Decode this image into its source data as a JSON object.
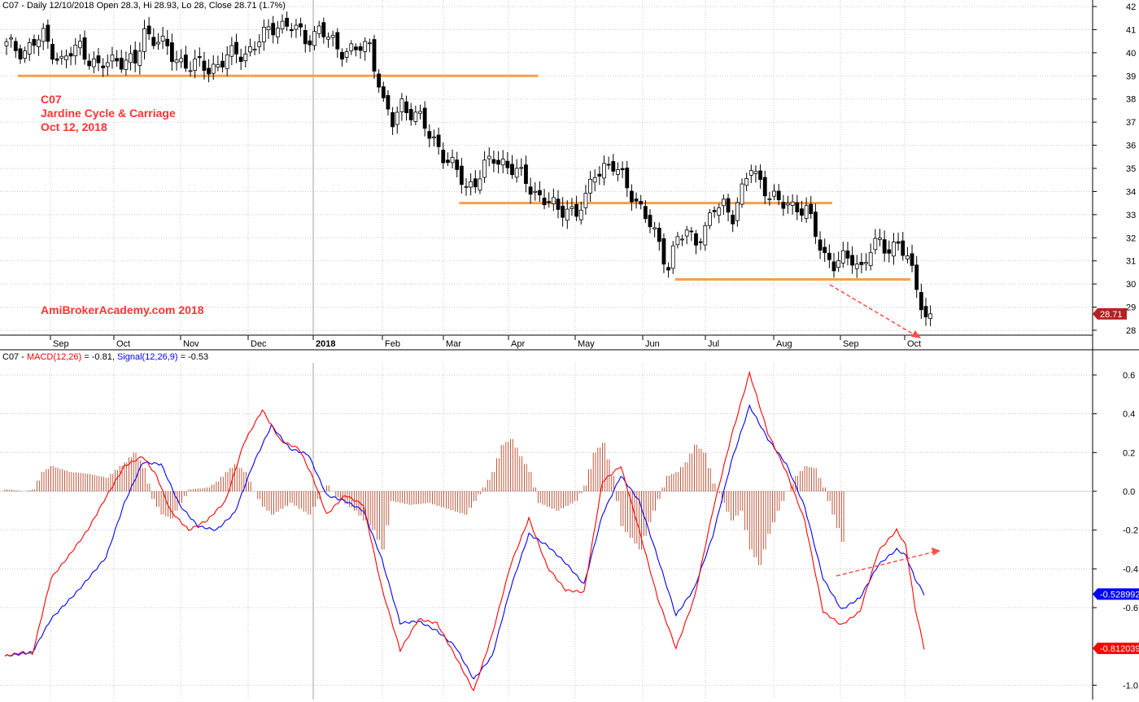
{
  "price_panel": {
    "header": "C07 - Daily 12/10/2018 Open 28.3, Hi 28.93, Lo 28, Close 28.71 (1.7%)",
    "annotation_lines": [
      "C07",
      "Jardine Cycle & Carriage",
      "Oct 12, 2018"
    ],
    "watermark": "AmiBrokerAcademy.com  2018",
    "last_price_badge": "28.71"
  },
  "macd_panel": {
    "header_prefix": "C07 - ",
    "macd_label": "MACD(12,26)",
    "macd_value": " = -0.81, ",
    "signal_label": "Signal(12,26,9)",
    "signal_value": " = -0.53",
    "signal_badge": "-0.528992",
    "macd_badge": "-0.812039"
  },
  "colors": {
    "up_candle": "#ffffff",
    "down_candle": "#000000",
    "support_line": "#f5a04a",
    "macd_line": "#ff0000",
    "signal_line": "#0000ff",
    "histogram": "#b5472a",
    "arrow": "#ff4d4d",
    "grid": "#c8c8c8",
    "badge_price": "#b22222",
    "badge_signal": "#0000ff",
    "badge_macd": "#ff0000"
  },
  "chart_data": [
    {
      "type": "candlestick",
      "ylim": [
        28,
        42
      ],
      "ticks": [
        28,
        29,
        30,
        31,
        32,
        33,
        34,
        35,
        36,
        37,
        38,
        39,
        40,
        41,
        42
      ],
      "x_labels": [
        "Sep",
        "Oct",
        "Nov",
        "Dec",
        "2018",
        "Feb",
        "Mar",
        "Apr",
        "May",
        "Jun",
        "Jul",
        "Aug",
        "Sep",
        "Oct"
      ],
      "close_path": [
        [
          0,
          40.3
        ],
        [
          4,
          40.1
        ],
        [
          8,
          40.7
        ],
        [
          12,
          39.6
        ],
        [
          16,
          40.3
        ],
        [
          20,
          39.3
        ],
        [
          24,
          39.8
        ],
        [
          28,
          39.5
        ],
        [
          30,
          40.9
        ],
        [
          33,
          40.6
        ],
        [
          36,
          39.8
        ],
        [
          40,
          39.5
        ],
        [
          44,
          39.3
        ],
        [
          48,
          39.8
        ],
        [
          52,
          40.0
        ],
        [
          56,
          40.7
        ],
        [
          59,
          41.3
        ],
        [
          62,
          41.1
        ],
        [
          65,
          40.6
        ],
        [
          68,
          41.0
        ],
        [
          72,
          40.2
        ],
        [
          76,
          40.1
        ],
        [
          79,
          40.3
        ],
        [
          80,
          39.6
        ],
        [
          81,
          38.8
        ],
        [
          82,
          37.8
        ],
        [
          84,
          36.9
        ],
        [
          86,
          37.8
        ],
        [
          88,
          37.5
        ],
        [
          90,
          37.1
        ],
        [
          92,
          36.4
        ],
        [
          94,
          36.0
        ],
        [
          96,
          35.3
        ],
        [
          98,
          34.8
        ],
        [
          100,
          34.2
        ],
        [
          102,
          34.5
        ],
        [
          104,
          35.0
        ],
        [
          106,
          35.4
        ],
        [
          108,
          35.3
        ],
        [
          110,
          35.0
        ],
        [
          112,
          34.6
        ],
        [
          114,
          34.2
        ],
        [
          116,
          33.8
        ],
        [
          118,
          33.5
        ],
        [
          120,
          33.1
        ],
        [
          122,
          33.4
        ],
        [
          124,
          33.0
        ],
        [
          126,
          33.6
        ],
        [
          128,
          34.9
        ],
        [
          130,
          35.1
        ],
        [
          132,
          35.0
        ],
        [
          134,
          34.6
        ],
        [
          136,
          34.0
        ],
        [
          138,
          33.2
        ],
        [
          140,
          32.5
        ],
        [
          142,
          31.8
        ],
        [
          144,
          30.8
        ],
        [
          146,
          31.9
        ],
        [
          148,
          32.2
        ],
        [
          150,
          32.0
        ],
        [
          152,
          32.3
        ],
        [
          154,
          33.2
        ],
        [
          156,
          33.5
        ],
        [
          158,
          33.0
        ],
        [
          160,
          33.9
        ],
        [
          162,
          35.1
        ],
        [
          164,
          34.5
        ],
        [
          166,
          33.8
        ],
        [
          168,
          33.4
        ],
        [
          170,
          33.6
        ],
        [
          172,
          33.3
        ],
        [
          174,
          33.1
        ],
        [
          176,
          32.2
        ],
        [
          178,
          31.3
        ],
        [
          180,
          30.8
        ],
        [
          182,
          31.0
        ],
        [
          184,
          31.2
        ],
        [
          186,
          30.7
        ],
        [
          188,
          31.4
        ],
        [
          190,
          31.8
        ],
        [
          192,
          31.6
        ],
        [
          194,
          31.7
        ],
        [
          196,
          31.0
        ],
        [
          198,
          30.0
        ],
        [
          199,
          29.3
        ],
        [
          200,
          28.5
        ],
        [
          201,
          28.71
        ]
      ],
      "support_levels": [
        {
          "value": 39.0,
          "from": 0,
          "to": 116
        },
        {
          "value": 33.5,
          "from": 96,
          "to": 180
        },
        {
          "value": 30.2,
          "from": 143,
          "to": 197
        }
      ]
    },
    {
      "type": "line",
      "ylim": [
        -1.05,
        0.7
      ],
      "ticks": [
        -1.0,
        -0.6,
        -0.4,
        -0.2,
        0.0,
        0.2,
        0.4,
        0.6
      ],
      "series": [
        {
          "name": "MACD(12,26)",
          "values": [
            [
              0,
              -0.85
            ],
            [
              4,
              -0.83
            ],
            [
              6,
              -0.84
            ],
            [
              10,
              -0.45
            ],
            [
              14,
              -0.33
            ],
            [
              18,
              -0.2
            ],
            [
              22,
              -0.03
            ],
            [
              26,
              0.13
            ],
            [
              30,
              0.18
            ],
            [
              33,
              0.08
            ],
            [
              36,
              -0.1
            ],
            [
              40,
              -0.2
            ],
            [
              44,
              -0.15
            ],
            [
              48,
              -0.05
            ],
            [
              52,
              0.25
            ],
            [
              56,
              0.42
            ],
            [
              60,
              0.26
            ],
            [
              64,
              0.22
            ],
            [
              67,
              0.07
            ],
            [
              70,
              -0.12
            ],
            [
              74,
              -0.02
            ],
            [
              78,
              -0.07
            ],
            [
              82,
              -0.5
            ],
            [
              86,
              -0.82
            ],
            [
              90,
              -0.66
            ],
            [
              94,
              -0.68
            ],
            [
              98,
              -0.85
            ],
            [
              102,
              -1.03
            ],
            [
              106,
              -0.74
            ],
            [
              110,
              -0.38
            ],
            [
              114,
              -0.14
            ],
            [
              118,
              -0.39
            ],
            [
              122,
              -0.51
            ],
            [
              126,
              -0.52
            ],
            [
              130,
              0.05
            ],
            [
              134,
              0.13
            ],
            [
              138,
              -0.2
            ],
            [
              142,
              -0.55
            ],
            [
              146,
              -0.81
            ],
            [
              150,
              -0.55
            ],
            [
              154,
              -0.1
            ],
            [
              158,
              0.28
            ],
            [
              162,
              0.61
            ],
            [
              166,
              0.3
            ],
            [
              170,
              0.1
            ],
            [
              174,
              -0.15
            ],
            [
              178,
              -0.62
            ],
            [
              182,
              -0.69
            ],
            [
              186,
              -0.62
            ],
            [
              190,
              -0.31
            ],
            [
              194,
              -0.2
            ],
            [
              196,
              -0.28
            ],
            [
              198,
              -0.6
            ],
            [
              200,
              -0.81
            ]
          ]
        },
        {
          "name": "Signal(12,26,9)",
          "values": [
            [
              0,
              -0.85
            ],
            [
              6,
              -0.83
            ],
            [
              10,
              -0.66
            ],
            [
              16,
              -0.51
            ],
            [
              22,
              -0.34
            ],
            [
              26,
              -0.06
            ],
            [
              30,
              0.15
            ],
            [
              34,
              0.14
            ],
            [
              38,
              -0.07
            ],
            [
              42,
              -0.18
            ],
            [
              46,
              -0.2
            ],
            [
              50,
              -0.11
            ],
            [
              54,
              0.14
            ],
            [
              58,
              0.34
            ],
            [
              62,
              0.22
            ],
            [
              66,
              0.19
            ],
            [
              70,
              -0.02
            ],
            [
              74,
              -0.05
            ],
            [
              78,
              -0.1
            ],
            [
              82,
              -0.35
            ],
            [
              86,
              -0.68
            ],
            [
              90,
              -0.67
            ],
            [
              94,
              -0.72
            ],
            [
              98,
              -0.8
            ],
            [
              102,
              -0.97
            ],
            [
              106,
              -0.85
            ],
            [
              110,
              -0.5
            ],
            [
              114,
              -0.22
            ],
            [
              118,
              -0.28
            ],
            [
              122,
              -0.37
            ],
            [
              126,
              -0.48
            ],
            [
              130,
              -0.12
            ],
            [
              134,
              0.08
            ],
            [
              138,
              -0.05
            ],
            [
              142,
              -0.34
            ],
            [
              146,
              -0.64
            ],
            [
              150,
              -0.5
            ],
            [
              154,
              -0.23
            ],
            [
              158,
              0.15
            ],
            [
              162,
              0.44
            ],
            [
              166,
              0.27
            ],
            [
              170,
              0.14
            ],
            [
              174,
              -0.08
            ],
            [
              178,
              -0.45
            ],
            [
              182,
              -0.61
            ],
            [
              186,
              -0.55
            ],
            [
              190,
              -0.38
            ],
            [
              194,
              -0.3
            ],
            [
              196,
              -0.33
            ],
            [
              198,
              -0.45
            ],
            [
              200,
              -0.53
            ]
          ]
        },
        {
          "name": "Histogram",
          "values": [
            [
              0,
              0.01
            ],
            [
              4,
              0.0
            ],
            [
              6,
              0.01
            ],
            [
              8,
              0.1
            ],
            [
              10,
              0.13
            ],
            [
              14,
              0.1
            ],
            [
              18,
              0.09
            ],
            [
              22,
              0.07
            ],
            [
              26,
              0.15
            ],
            [
              28,
              0.2
            ],
            [
              30,
              0.12
            ],
            [
              32,
              -0.04
            ],
            [
              34,
              -0.12
            ],
            [
              36,
              -0.14
            ],
            [
              38,
              -0.06
            ],
            [
              40,
              0.01
            ],
            [
              44,
              0.02
            ],
            [
              46,
              0.05
            ],
            [
              48,
              0.1
            ],
            [
              50,
              0.14
            ],
            [
              52,
              0.1
            ],
            [
              54,
              0.0
            ],
            [
              56,
              -0.08
            ],
            [
              58,
              -0.12
            ],
            [
              62,
              -0.06
            ],
            [
              66,
              -0.12
            ],
            [
              68,
              -0.04
            ],
            [
              70,
              0.03
            ],
            [
              72,
              -0.03
            ],
            [
              76,
              -0.1
            ],
            [
              80,
              -0.2
            ],
            [
              82,
              -0.3
            ],
            [
              84,
              -0.05
            ],
            [
              88,
              -0.07
            ],
            [
              92,
              -0.06
            ],
            [
              96,
              -0.09
            ],
            [
              100,
              -0.12
            ],
            [
              104,
              0.02
            ],
            [
              106,
              0.1
            ],
            [
              108,
              0.24
            ],
            [
              110,
              0.27
            ],
            [
              112,
              0.18
            ],
            [
              114,
              0.1
            ],
            [
              116,
              -0.06
            ],
            [
              120,
              -0.1
            ],
            [
              124,
              -0.05
            ],
            [
              126,
              0.03
            ],
            [
              128,
              0.2
            ],
            [
              130,
              0.25
            ],
            [
              132,
              0.08
            ],
            [
              134,
              -0.18
            ],
            [
              136,
              -0.24
            ],
            [
              138,
              -0.3
            ],
            [
              140,
              -0.16
            ],
            [
              142,
              -0.04
            ],
            [
              144,
              0.08
            ],
            [
              146,
              0.1
            ],
            [
              148,
              0.15
            ],
            [
              150,
              0.24
            ],
            [
              152,
              0.2
            ],
            [
              154,
              0.04
            ],
            [
              156,
              -0.06
            ],
            [
              158,
              -0.15
            ],
            [
              160,
              -0.1
            ],
            [
              162,
              -0.3
            ],
            [
              164,
              -0.38
            ],
            [
              166,
              -0.22
            ],
            [
              168,
              -0.1
            ],
            [
              170,
              0.0
            ],
            [
              172,
              0.08
            ],
            [
              174,
              0.13
            ],
            [
              176,
              0.12
            ],
            [
              178,
              0.02
            ],
            [
              180,
              -0.12
            ],
            [
              182,
              -0.26
            ]
          ]
        }
      ]
    }
  ]
}
